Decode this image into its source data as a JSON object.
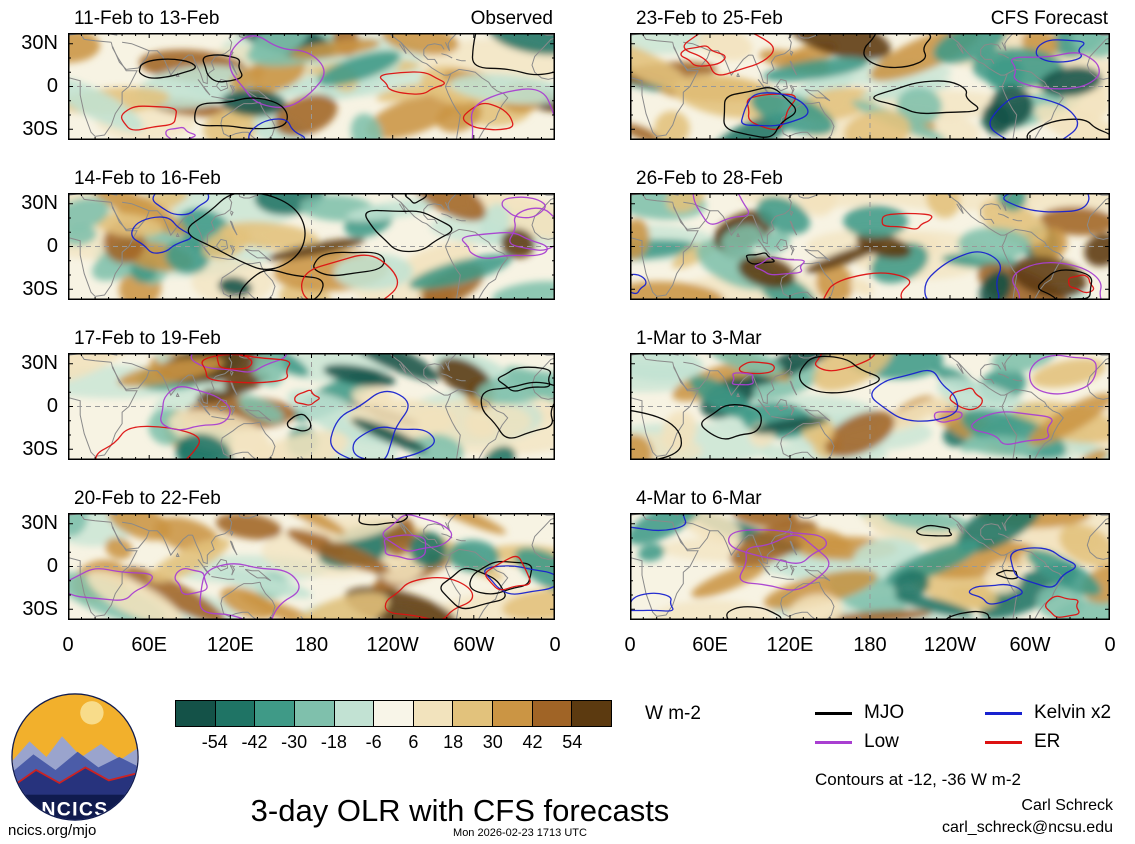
{
  "figure": {
    "title": "3-day OLR with CFS forecasts",
    "site": "ncics.org/mjo",
    "timestamp": "Mon 2026-02-23 1713 UTC",
    "credit_name": "Carl Schreck",
    "credit_email": "carl_schreck@ncsu.edu",
    "logo_text": "NCICS"
  },
  "chart_data": {
    "type": "heatmap",
    "subtype": "filled-contour longitude-latitude OLR anomaly maps, 2 columns x 4 rows",
    "title": "3-day OLR with CFS forecasts",
    "units": "W m-2",
    "columns": [
      {
        "header": "Observed",
        "panels": [
          "11-Feb to 13-Feb",
          "14-Feb to 16-Feb",
          "17-Feb to 19-Feb",
          "20-Feb to 22-Feb"
        ]
      },
      {
        "header": "CFS Forecast",
        "panels": [
          "23-Feb to 25-Feb",
          "26-Feb to 28-Feb",
          "1-Mar to 3-Mar",
          "4-Mar to 6-Mar"
        ]
      }
    ],
    "x_ticks": [
      "0",
      "60E",
      "120E",
      "180",
      "120W",
      "60W",
      "0"
    ],
    "y_ticks": [
      "30N",
      "0",
      "30S"
    ],
    "colorbar": {
      "ticks": [
        "-54",
        "-42",
        "-30",
        "-18",
        "-6",
        "6",
        "18",
        "30",
        "42",
        "54"
      ],
      "colors": [
        "#145248",
        "#1f7465",
        "#3f9a87",
        "#7fc0ac",
        "#c2e2d3",
        "#f8f5e8",
        "#f2e3bd",
        "#e2c27c",
        "#cb9544",
        "#a06426",
        "#5c3a10"
      ]
    },
    "contour_legend": [
      {
        "label": "MJO",
        "color": "#000000"
      },
      {
        "label": "Kelvin x2",
        "color": "#1822cf"
      },
      {
        "label": "Low",
        "color": "#a93fd1"
      },
      {
        "label": "ER",
        "color": "#dd1111"
      }
    ],
    "contour_note": "Contours at -12, -36 W m-2"
  }
}
